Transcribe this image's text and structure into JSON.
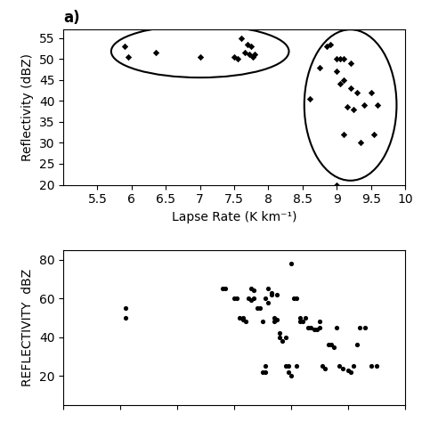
{
  "chart_data": [
    {
      "type": "scatter",
      "title": "a)",
      "xlabel": "Lapse Rate (K km⁻¹)",
      "ylabel": "Reflectivity (dBZ)",
      "xlim": [
        5,
        10
      ],
      "ylim": [
        20,
        57
      ],
      "xticks": [
        5.5,
        6,
        6.5,
        7,
        7.5,
        8,
        8.5,
        9,
        9.5,
        10
      ],
      "yticks": [
        20,
        25,
        30,
        35,
        40,
        45,
        50,
        55
      ],
      "series": [
        {
          "marker": "diamond",
          "color": "black",
          "x": [
            5.9,
            5.95,
            6.35,
            7.0,
            7.5,
            7.55,
            7.6,
            7.65,
            7.7,
            7.72,
            7.75,
            7.77,
            7.8
          ],
          "y": [
            53,
            50.5,
            51.5,
            50.5,
            50.5,
            50.0,
            55.0,
            51.5,
            53.5,
            51.0,
            53.0,
            50.5,
            51.0
          ]
        },
        {
          "marker": "diamond",
          "color": "black",
          "x": [
            8.6,
            8.75,
            8.85,
            8.9,
            9.0,
            9.0,
            9.05,
            9.05,
            9.1,
            9.1,
            9.1,
            9.15,
            9.2,
            9.2,
            9.25,
            9.3,
            9.35,
            9.4,
            9.5,
            9.55,
            9.6,
            9.0
          ],
          "y": [
            40.5,
            48,
            53,
            53.5,
            50,
            47,
            44,
            50,
            32,
            45,
            50,
            38.5,
            43,
            49,
            38,
            42,
            30,
            39,
            42,
            32,
            39,
            20
          ]
        }
      ],
      "ellipses": [
        {
          "cx": 7.0,
          "cy": 51.8,
          "width": 2.6,
          "height": 12.5,
          "color": "black"
        },
        {
          "cx": 9.2,
          "cy": 39.0,
          "width": 1.35,
          "height": 36,
          "color": "black"
        }
      ]
    },
    {
      "type": "scatter",
      "ylabel": "REFLECTIVITY  dBZ",
      "xlim": [
        0,
        6
      ],
      "ylim": [
        5,
        85
      ],
      "xticks": [
        0,
        1,
        2,
        3,
        4,
        5,
        6
      ],
      "yticks": [
        20,
        40,
        60,
        80
      ],
      "tick_labels": "y",
      "series": [
        {
          "marker": "circle",
          "color": "black",
          "x": [
            1.1,
            1.1,
            2.8,
            2.85,
            3.0,
            3.05,
            3.1,
            3.15,
            3.15,
            3.2,
            3.25,
            3.3,
            3.3,
            3.35,
            3.35,
            3.4,
            3.45,
            3.5,
            3.5,
            3.55,
            3.55,
            3.55,
            3.6,
            3.6,
            3.65,
            3.65,
            3.7,
            3.7,
            3.75,
            3.75,
            3.8,
            3.8,
            3.85,
            3.9,
            3.9,
            3.95,
            3.95,
            4.0,
            4.0,
            4.05,
            4.1,
            4.1,
            4.15,
            4.15,
            4.2,
            4.25,
            4.3,
            4.35,
            4.4,
            4.45,
            4.5,
            4.5,
            4.55,
            4.6,
            4.65,
            4.7,
            4.75,
            4.8,
            4.85,
            4.9,
            5.0,
            5.05,
            5.1,
            5.15,
            5.2,
            5.3,
            5.4,
            5.5
          ],
          "y": [
            55,
            50,
            65,
            65,
            60,
            60,
            50,
            49,
            50,
            48,
            60,
            59,
            65,
            64,
            60,
            55,
            55,
            48,
            22,
            22,
            25,
            60,
            58,
            65,
            62,
            63,
            50,
            48,
            49,
            62,
            40,
            42,
            38,
            40,
            25,
            25,
            22,
            78,
            20,
            60,
            60,
            25,
            50,
            48,
            48,
            50,
            45,
            45,
            44,
            44,
            45,
            48,
            25,
            24,
            36,
            36,
            35,
            45,
            25,
            24,
            23,
            22,
            25,
            36,
            45,
            45,
            25,
            25
          ]
        }
      ]
    }
  ]
}
